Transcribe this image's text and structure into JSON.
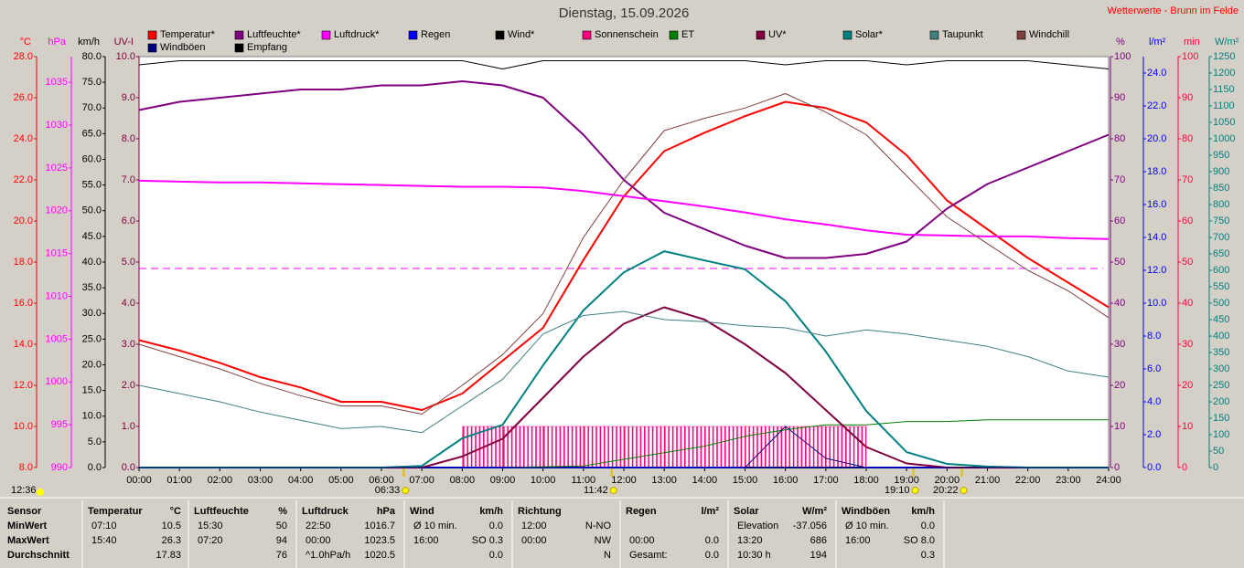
{
  "chart_data": {
    "type": "line",
    "title": "Dienstag, 15.09.2026",
    "source": "Wetterwerte - Brunn im Felde",
    "current_time": "12:36",
    "categories": [
      "00:00",
      "01:00",
      "02:00",
      "03:00",
      "04:00",
      "05:00",
      "06:00",
      "07:00",
      "08:00",
      "09:00",
      "10:00",
      "11:00",
      "12:00",
      "13:00",
      "14:00",
      "15:00",
      "16:00",
      "17:00",
      "18:00",
      "19:00",
      "20:00",
      "21:00",
      "22:00",
      "23:00",
      "24:00"
    ],
    "annotations": [
      "06:33",
      "11:42",
      "19:10",
      "20:22"
    ],
    "axes": [
      {
        "name": "°C",
        "side": "left",
        "color": "#ff0000",
        "lim": [
          8,
          28
        ],
        "ticks": [
          {
            "value": 8,
            "label": "8.0"
          },
          {
            "value": 10,
            "label": "10.0"
          },
          {
            "value": 12,
            "label": "12.0"
          },
          {
            "value": 14,
            "label": "14.0"
          },
          {
            "value": 16,
            "label": "16.0"
          },
          {
            "value": 18,
            "label": "18.0"
          },
          {
            "value": 20,
            "label": "20.0"
          },
          {
            "value": 22,
            "label": "22.0"
          },
          {
            "value": 24,
            "label": "24.0"
          },
          {
            "value": 26,
            "label": "26.0"
          },
          {
            "value": 28,
            "label": "28.0"
          }
        ]
      },
      {
        "name": "hPa",
        "side": "left",
        "color": "#ff00ff",
        "lim": [
          990,
          1038
        ],
        "ticks": [
          990,
          995,
          1000,
          1005,
          1010,
          1015,
          1020,
          1025,
          1030,
          1035
        ]
      },
      {
        "name": "km/h",
        "side": "left",
        "color": "#000000",
        "lim": [
          0,
          80
        ],
        "ticks": [
          {
            "value": 0,
            "label": "0.0"
          },
          {
            "value": 5,
            "label": "5.0"
          },
          {
            "value": 10,
            "label": "10.0"
          },
          {
            "value": 15,
            "label": "15.0"
          },
          {
            "value": 20,
            "label": "20.0"
          },
          {
            "value": 25,
            "label": "25.0"
          },
          {
            "value": 30,
            "label": "30.0"
          },
          {
            "value": 35,
            "label": "35.0"
          },
          {
            "value": 40,
            "label": "40.0"
          },
          {
            "value": 45,
            "label": "45.0"
          },
          {
            "value": 50,
            "label": "50.0"
          },
          {
            "value": 55,
            "label": "55.0"
          },
          {
            "value": 60,
            "label": "60.0"
          },
          {
            "value": 65,
            "label": "65.0"
          },
          {
            "value": 70,
            "label": "70.0"
          },
          {
            "value": 75,
            "label": "75.0"
          },
          {
            "value": 80,
            "label": "80.0"
          }
        ]
      },
      {
        "name": "UV-I",
        "side": "left",
        "color": "#800040",
        "lim": [
          0,
          10
        ],
        "ticks": [
          {
            "value": 0,
            "label": "0.0"
          },
          {
            "value": 1,
            "label": "1.0"
          },
          {
            "value": 2,
            "label": "2.0"
          },
          {
            "value": 3,
            "label": "3.0"
          },
          {
            "value": 4,
            "label": "4.0"
          },
          {
            "value": 5,
            "label": "5.0"
          },
          {
            "value": 6,
            "label": "6.0"
          },
          {
            "value": 7,
            "label": "7.0"
          },
          {
            "value": 8,
            "label": "8.0"
          },
          {
            "value": 9,
            "label": "9.0"
          },
          {
            "value": 10,
            "label": "10.0"
          }
        ]
      },
      {
        "name": "%",
        "side": "right",
        "color": "#800080",
        "lim": [
          0,
          100
        ],
        "ticks": [
          0,
          10,
          20,
          30,
          40,
          50,
          60,
          70,
          80,
          90,
          100
        ]
      },
      {
        "name": "l/m²",
        "side": "right",
        "color": "#0000ff",
        "lim": [
          0,
          25
        ],
        "ticks": [
          {
            "value": 0,
            "label": "0.0"
          },
          {
            "value": 2,
            "label": "2.0"
          },
          {
            "value": 4,
            "label": "4.0"
          },
          {
            "value": 6,
            "label": "6.0"
          },
          {
            "value": 8,
            "label": "8.0"
          },
          {
            "value": 10,
            "label": "10.0"
          },
          {
            "value": 12,
            "label": "12.0"
          },
          {
            "value": 14,
            "label": "14.0"
          },
          {
            "value": 16,
            "label": "16.0"
          },
          {
            "value": 18,
            "label": "18.0"
          },
          {
            "value": 20,
            "label": "20.0"
          },
          {
            "value": 22,
            "label": "22.0"
          },
          {
            "value": 24,
            "label": "24.0"
          }
        ]
      },
      {
        "name": "min",
        "side": "right",
        "color": "#ff0040",
        "lim": [
          0,
          100
        ],
        "ticks": [
          0,
          10,
          20,
          30,
          40,
          50,
          60,
          70,
          80,
          90,
          100
        ]
      },
      {
        "name": "W/m²",
        "side": "right",
        "color": "#008080",
        "lim": [
          0,
          1250
        ],
        "ticks": [
          0,
          50,
          100,
          150,
          200,
          250,
          300,
          350,
          400,
          450,
          500,
          550,
          600,
          650,
          700,
          750,
          800,
          850,
          900,
          950,
          1000,
          1050,
          1100,
          1150,
          1200,
          1250
        ]
      }
    ],
    "reference_lines": [
      {
        "axis": "hPa",
        "value": 1013.25,
        "color": "#ff00ff"
      }
    ],
    "series": [
      {
        "name": "Temperatur*",
        "color": "#ff0000",
        "axis": "°C",
        "width": 2,
        "values": [
          14.2,
          13.7,
          13.1,
          12.4,
          11.9,
          11.2,
          11.2,
          10.8,
          11.6,
          13.2,
          14.8,
          18.1,
          21.2,
          23.4,
          24.3,
          25.1,
          25.8,
          25.5,
          24.8,
          23.2,
          21.0,
          19.6,
          18.2,
          17.0,
          15.8
        ]
      },
      {
        "name": "Luftfeuchte*",
        "color": "#800080",
        "axis": "%",
        "width": 2,
        "values": [
          87,
          89,
          90,
          91,
          92,
          92,
          93,
          93,
          94,
          93,
          90,
          81,
          70,
          62,
          58,
          54,
          51,
          51,
          52,
          55,
          63,
          69,
          73,
          77,
          81
        ]
      },
      {
        "name": "Luftdruck*",
        "color": "#ff00ff",
        "axis": "hPa",
        "width": 2,
        "values": [
          1023.5,
          1023.4,
          1023.3,
          1023.3,
          1023.2,
          1023.1,
          1023.0,
          1022.9,
          1022.8,
          1022.8,
          1022.7,
          1022.3,
          1021.7,
          1021.1,
          1020.5,
          1019.8,
          1019.0,
          1018.4,
          1017.7,
          1017.2,
          1017.1,
          1017.0,
          1017.0,
          1016.8,
          1016.7
        ]
      },
      {
        "name": "Regen",
        "color": "#0000ff",
        "axis": "l/m²",
        "width": 2,
        "values": [
          0,
          0,
          0,
          0,
          0,
          0,
          0,
          0,
          0,
          0,
          0,
          0,
          0,
          0,
          0,
          0,
          0,
          0,
          0,
          0,
          0,
          0,
          0,
          0,
          0
        ]
      },
      {
        "name": "Wind*",
        "color": "#000000",
        "axis": "km/h",
        "width": 1,
        "values": [
          0,
          0,
          0,
          0,
          0,
          0,
          0,
          0,
          0,
          0,
          0,
          0,
          0,
          0,
          0,
          0,
          0,
          0,
          0,
          0,
          0,
          0,
          0,
          0,
          0
        ]
      },
      {
        "name": "Sonnenschein",
        "color": "#ff0080",
        "axis": "min",
        "style": "bars",
        "values": [
          null,
          null,
          null,
          null,
          null,
          null,
          null,
          null,
          10,
          10,
          10,
          10,
          10,
          10,
          10,
          10,
          10,
          10,
          null,
          null,
          null,
          null,
          null,
          null,
          null
        ]
      },
      {
        "name": "ET",
        "color": "#008000",
        "axis": "l/m²",
        "width": 1,
        "values": [
          0,
          0,
          0,
          0,
          0,
          0,
          0,
          0,
          0,
          0,
          0.05,
          0.1,
          0.5,
          0.9,
          1.3,
          1.9,
          2.3,
          2.6,
          2.6,
          2.8,
          2.8,
          2.9,
          2.9,
          2.9,
          2.9
        ]
      },
      {
        "name": "UV*",
        "color": "#800040",
        "axis": "UV-I",
        "width": 2,
        "values": [
          0,
          0,
          0,
          0,
          0,
          0,
          0,
          0,
          0.27,
          0.7,
          1.7,
          2.7,
          3.5,
          3.9,
          3.6,
          3.0,
          2.3,
          1.4,
          0.5,
          0.1,
          0,
          0,
          0,
          0,
          0
        ]
      },
      {
        "name": "Solar*",
        "color": "#008080",
        "axis": "W/m²",
        "width": 2,
        "values": [
          0,
          0,
          0,
          0,
          0,
          0,
          0,
          5,
          89,
          130,
          311,
          478,
          594,
          658,
          630,
          603,
          506,
          353,
          172,
          47,
          11,
          3,
          0,
          0,
          0
        ]
      },
      {
        "name": "Taupunkt",
        "color": "#408080",
        "axis": "°C",
        "width": 1,
        "values": [
          12.0,
          11.6,
          11.2,
          10.7,
          10.3,
          9.9,
          10.0,
          9.7,
          11.0,
          12.3,
          14.5,
          15.4,
          15.6,
          15.2,
          15.1,
          14.9,
          14.8,
          14.4,
          14.7,
          14.5,
          14.2,
          13.9,
          13.4,
          12.7,
          12.4
        ]
      },
      {
        "name": "Windchill",
        "color": "#804040",
        "axis": "°C",
        "width": 1,
        "values": [
          14.0,
          13.4,
          12.8,
          12.1,
          11.5,
          11.0,
          11.0,
          10.6,
          12.0,
          13.5,
          15.5,
          19.2,
          22.0,
          24.4,
          25.0,
          25.5,
          26.2,
          25.3,
          24.2,
          22.2,
          20.2,
          18.9,
          17.6,
          16.6,
          15.3
        ]
      },
      {
        "name": "Windböen",
        "color": "#000080",
        "axis": "km/h",
        "width": 1,
        "values": [
          0,
          0,
          0,
          0,
          0,
          0,
          0,
          0,
          0,
          0,
          0,
          0,
          0,
          0,
          0,
          0,
          8,
          1.8,
          0,
          0,
          0,
          0,
          0,
          0,
          0
        ]
      },
      {
        "name": "Empfang",
        "color": "#000000",
        "axis": "%",
        "width": 1,
        "values": [
          98,
          99,
          99,
          99,
          99,
          99,
          99,
          99,
          99,
          97,
          99,
          99,
          99,
          99,
          99,
          99,
          98,
          99,
          99,
          98,
          99,
          99,
          99,
          98,
          97
        ]
      }
    ]
  },
  "table": {
    "header": [
      "Sensor",
      [
        "Temperatur",
        "°C"
      ],
      [
        "Luftfeuchte",
        "%"
      ],
      [
        "Luftdruck",
        "hPa"
      ],
      [
        "Wind",
        "km/h"
      ],
      [
        "Richtung",
        null
      ],
      [
        "Regen",
        "l/m²"
      ],
      [
        "Solar",
        "W/m²"
      ],
      [
        "Windböen",
        "km/h"
      ]
    ],
    "rows": [
      {
        "label": "MinWert",
        "cells": [
          [
            "07:10",
            "10.5"
          ],
          [
            "15:30",
            "50"
          ],
          [
            "22:50",
            "1016.7"
          ],
          [
            "Ø 10 min.",
            "0.0"
          ],
          [
            "12:00",
            "N-NO"
          ],
          [
            null,
            null
          ],
          [
            "Elevation",
            "-37.056"
          ],
          [
            "Ø 10 min.",
            "0.0"
          ]
        ]
      },
      {
        "label": "MaxWert",
        "cells": [
          [
            "15:40",
            "26.3"
          ],
          [
            "07:20",
            "94"
          ],
          [
            "00:00",
            "1023.5"
          ],
          [
            "16:00",
            "SO 0.3"
          ],
          [
            "00:00",
            "NW"
          ],
          [
            "00:00",
            "0.0"
          ],
          [
            "13:20",
            "686"
          ],
          [
            "16:00",
            "SO 8.0"
          ]
        ]
      },
      {
        "label": "Durchschnitt",
        "cells": [
          [
            null,
            "17.83"
          ],
          [
            null,
            "76"
          ],
          [
            "^1.0hPa/h",
            "1020.5"
          ],
          [
            null,
            "0.0"
          ],
          [
            null,
            "N"
          ],
          [
            "Gesamt:",
            "0.0"
          ],
          [
            "10:30 h",
            "194"
          ],
          [
            null,
            "0.3"
          ]
        ]
      }
    ]
  }
}
